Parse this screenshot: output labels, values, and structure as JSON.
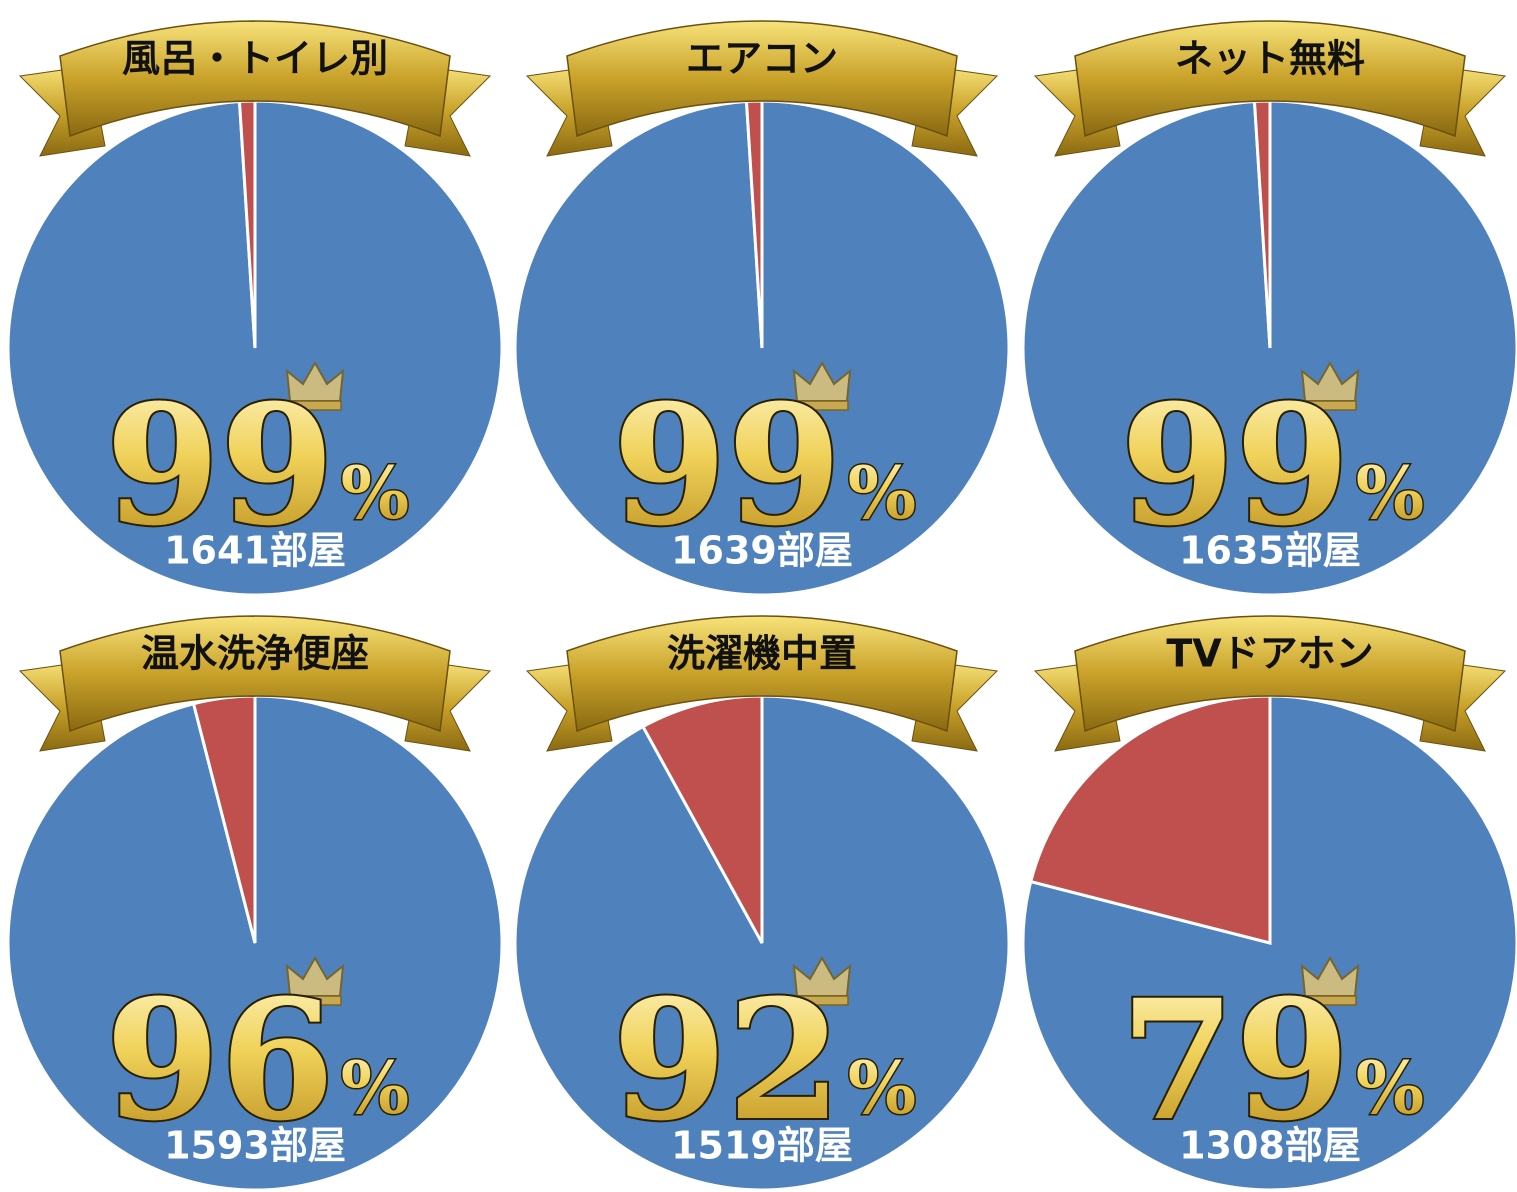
{
  "chart_data": [
    {
      "type": "pie",
      "title": "風呂・トイレ別",
      "values": [
        99,
        1
      ],
      "colors": [
        "#4f81bd",
        "#c0504d"
      ],
      "unit": "%",
      "count_label": "1641部屋"
    },
    {
      "type": "pie",
      "title": "エアコン",
      "values": [
        99,
        1
      ],
      "colors": [
        "#4f81bd",
        "#c0504d"
      ],
      "unit": "%",
      "count_label": "1639部屋"
    },
    {
      "type": "pie",
      "title": "ネット無料",
      "values": [
        99,
        1
      ],
      "colors": [
        "#4f81bd",
        "#c0504d"
      ],
      "unit": "%",
      "count_label": "1635部屋"
    },
    {
      "type": "pie",
      "title": "温水洗浄便座",
      "values": [
        96,
        4
      ],
      "colors": [
        "#4f81bd",
        "#c0504d"
      ],
      "unit": "%",
      "count_label": "1593部屋"
    },
    {
      "type": "pie",
      "title": "洗濯機中置",
      "values": [
        92,
        8
      ],
      "colors": [
        "#4f81bd",
        "#c0504d"
      ],
      "unit": "%",
      "count_label": "1519部屋"
    },
    {
      "type": "pie",
      "title": "TVドアホン",
      "values": [
        79,
        21
      ],
      "colors": [
        "#4f81bd",
        "#c0504d"
      ],
      "unit": "%",
      "count_label": "1308部屋"
    }
  ]
}
